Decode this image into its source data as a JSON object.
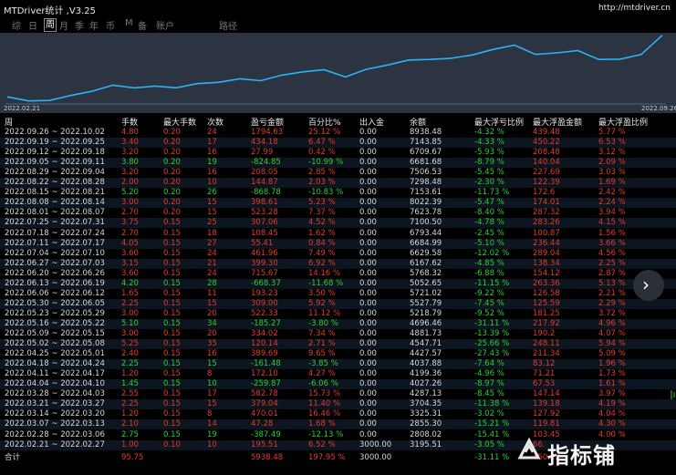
{
  "window": {
    "title": "MTDriver统计 ,V3.25",
    "url": "http://mtdriver.cn"
  },
  "tabs": [
    "综",
    "日",
    "周",
    "月",
    "季",
    "年",
    "币",
    "M",
    "备",
    "账户",
    "路径"
  ],
  "active_tab": "周",
  "chart": {
    "x_start": "2022.02.21",
    "x_end": "2022.09.26",
    "line_color": "#2bb3f5",
    "bg_color": "#2b3440"
  },
  "chart_data": {
    "type": "line",
    "x": [
      "2022.02.21",
      "2022.02.28",
      "2022.03.07",
      "2022.03.14",
      "2022.03.21",
      "2022.03.28",
      "2022.04.04",
      "2022.04.11",
      "2022.04.18",
      "2022.04.25",
      "2022.05.02",
      "2022.05.09",
      "2022.05.16",
      "2022.05.23",
      "2022.05.30",
      "2022.06.06",
      "2022.06.13",
      "2022.06.20",
      "2022.06.27",
      "2022.07.04",
      "2022.07.11",
      "2022.07.18",
      "2022.07.25",
      "2022.08.01",
      "2022.08.08",
      "2022.08.15",
      "2022.08.22",
      "2022.08.29",
      "2022.09.05",
      "2022.09.12",
      "2022.09.19",
      "2022.09.26"
    ],
    "series": [
      {
        "values": [
          3195.51,
          2808.02,
          2855.3,
          3325.31,
          3704.35,
          4287.13,
          4027.26,
          4199.36,
          4037.88,
          4427.57,
          4547.71,
          4881.73,
          4696.46,
          5218.79,
          5527.79,
          5721.02,
          5052.65,
          5768.32,
          6167.62,
          6629.58,
          6684.99,
          6793.44,
          7100.5,
          7623.78,
          8022.39,
          7153.61,
          7298.48,
          7506.53,
          6681.68,
          6709.67,
          7143.85,
          8938.48
        ]
      }
    ],
    "xlabel": "",
    "ylabel": "",
    "ylim": [
      2700,
      9000
    ]
  },
  "headers": [
    "周",
    "手数",
    "最大手数",
    "次数",
    "盈亏金额",
    "百分比%",
    "出入金",
    "余额",
    "最大浮亏比例",
    "最大浮盈金额",
    "最大浮盈比例"
  ],
  "rows": [
    {
      "week": "2022.09.26 ~ 2022.10.02",
      "lots": "4.80",
      "max_lots": "0.20",
      "count": "24",
      "pl": "1794.63",
      "pct": "25.12 %",
      "flow": "0.00",
      "balance": "8938.48",
      "max_dd_pct": "-4.32 %",
      "max_fp": "439.48",
      "max_fp_pct": "5.77 %",
      "sign": "pos"
    },
    {
      "week": "2022.09.19 ~ 2022.09.25",
      "lots": "3.40",
      "max_lots": "0.20",
      "count": "17",
      "pl": "434.18",
      "pct": "6.47 %",
      "flow": "0.00",
      "balance": "7143.85",
      "max_dd_pct": "-4.33 %",
      "max_fp": "450.22",
      "max_fp_pct": "6.53 %",
      "sign": "pos"
    },
    {
      "week": "2022.09.12 ~ 2022.09.18",
      "lots": "3.20",
      "max_lots": "0.20",
      "count": "16",
      "pl": "27.99",
      "pct": "0.42 %",
      "flow": "0.00",
      "balance": "6709.67",
      "max_dd_pct": "-5.93 %",
      "max_fp": "208.48",
      "max_fp_pct": "3.12 %",
      "sign": "pos"
    },
    {
      "week": "2022.09.05 ~ 2022.09.11",
      "lots": "3.80",
      "max_lots": "0.20",
      "count": "19",
      "pl": "-824.85",
      "pct": "-10.99 %",
      "flow": "0.00",
      "balance": "6681.68",
      "max_dd_pct": "-8.79 %",
      "max_fp": "140.04",
      "max_fp_pct": "2.09 %",
      "sign": "neg"
    },
    {
      "week": "2022.08.29 ~ 2022.09.04",
      "lots": "3.20",
      "max_lots": "0.20",
      "count": "16",
      "pl": "208.05",
      "pct": "2.85 %",
      "flow": "0.00",
      "balance": "7506.53",
      "max_dd_pct": "-5.45 %",
      "max_fp": "227.69",
      "max_fp_pct": "3.03 %",
      "sign": "pos"
    },
    {
      "week": "2022.08.22 ~ 2022.08.28",
      "lots": "2.00",
      "max_lots": "0.20",
      "count": "10",
      "pl": "144.87",
      "pct": "2.03 %",
      "flow": "0.00",
      "balance": "7298.48",
      "max_dd_pct": "-2.30 %",
      "max_fp": "122.39",
      "max_fp_pct": "1.69 %",
      "sign": "pos"
    },
    {
      "week": "2022.08.15 ~ 2022.08.21",
      "lots": "5.20",
      "max_lots": "0.20",
      "count": "26",
      "pl": "-868.78",
      "pct": "-10.83 %",
      "flow": "0.00",
      "balance": "7153.61",
      "max_dd_pct": "-11.73 %",
      "max_fp": "172.6",
      "max_fp_pct": "2.42 %",
      "sign": "neg"
    },
    {
      "week": "2022.08.08 ~ 2022.08.14",
      "lots": "3.00",
      "max_lots": "0.20",
      "count": "15",
      "pl": "398.61",
      "pct": "5.23 %",
      "flow": "0.00",
      "balance": "8022.39",
      "max_dd_pct": "-5.47 %",
      "max_fp": "174.01",
      "max_fp_pct": "2.24 %",
      "sign": "pos"
    },
    {
      "week": "2022.08.01 ~ 2022.08.07",
      "lots": "2.70",
      "max_lots": "0.20",
      "count": "15",
      "pl": "523.28",
      "pct": "7.37 %",
      "flow": "0.00",
      "balance": "7623.78",
      "max_dd_pct": "-8.40 %",
      "max_fp": "287.32",
      "max_fp_pct": "3.94 %",
      "sign": "pos"
    },
    {
      "week": "2022.07.25 ~ 2022.07.31",
      "lots": "3.75",
      "max_lots": "0.15",
      "count": "25",
      "pl": "307.06",
      "pct": "4.52 %",
      "flow": "0.00",
      "balance": "7100.50",
      "max_dd_pct": "-4.78 %",
      "max_fp": "283.26",
      "max_fp_pct": "4.15 %",
      "sign": "pos"
    },
    {
      "week": "2022.07.18 ~ 2022.07.24",
      "lots": "2.70",
      "max_lots": "0.15",
      "count": "18",
      "pl": "108.45",
      "pct": "1.62 %",
      "flow": "0.00",
      "balance": "6793.44",
      "max_dd_pct": "-2.45 %",
      "max_fp": "100.87",
      "max_fp_pct": "1.56 %",
      "sign": "pos"
    },
    {
      "week": "2022.07.11 ~ 2022.07.17",
      "lots": "4.05",
      "max_lots": "0.15",
      "count": "27",
      "pl": "55.41",
      "pct": "0.84 %",
      "flow": "0.00",
      "balance": "6684.99",
      "max_dd_pct": "-5.10 %",
      "max_fp": "236.44",
      "max_fp_pct": "3.66 %",
      "sign": "pos"
    },
    {
      "week": "2022.07.04 ~ 2022.07.10",
      "lots": "3.60",
      "max_lots": "0.15",
      "count": "24",
      "pl": "461.96",
      "pct": "7.49 %",
      "flow": "0.00",
      "balance": "6629.58",
      "max_dd_pct": "-12.02 %",
      "max_fp": "289.04",
      "max_fp_pct": "4.56 %",
      "sign": "pos"
    },
    {
      "week": "2022.06.27 ~ 2022.07.03",
      "lots": "3.15",
      "max_lots": "0.15",
      "count": "21",
      "pl": "399.30",
      "pct": "6.92 %",
      "flow": "0.00",
      "balance": "6167.62",
      "max_dd_pct": "-4.85 %",
      "max_fp": "138.34",
      "max_fp_pct": "2.25 %",
      "sign": "pos"
    },
    {
      "week": "2022.06.20 ~ 2022.06.26",
      "lots": "3.60",
      "max_lots": "0.15",
      "count": "24",
      "pl": "715.67",
      "pct": "14.16 %",
      "flow": "0.00",
      "balance": "5768.32",
      "max_dd_pct": "-6.88 %",
      "max_fp": "154.12",
      "max_fp_pct": "2.87 %",
      "sign": "pos"
    },
    {
      "week": "2022.06.13 ~ 2022.06.19",
      "lots": "4.20",
      "max_lots": "0.15",
      "count": "28",
      "pl": "-668.37",
      "pct": "-11.68 %",
      "flow": "0.00",
      "balance": "5052.65",
      "max_dd_pct": "-11.15 %",
      "max_fp": "263.36",
      "max_fp_pct": "5.13 %",
      "sign": "neg"
    },
    {
      "week": "2022.06.06 ~ 2022.06.12",
      "lots": "1.65",
      "max_lots": "0.15",
      "count": "11",
      "pl": "193.23",
      "pct": "3.50 %",
      "flow": "0.00",
      "balance": "5721.02",
      "max_dd_pct": "-9.22 %",
      "max_fp": "126.58",
      "max_fp_pct": "2.21 %",
      "sign": "pos"
    },
    {
      "week": "2022.05.30 ~ 2022.06.05",
      "lots": "2.25",
      "max_lots": "0.15",
      "count": "15",
      "pl": "309.00",
      "pct": "5.92 %",
      "flow": "0.00",
      "balance": "5527.79",
      "max_dd_pct": "-7.45 %",
      "max_fp": "125.59",
      "max_fp_pct": "2.29 %",
      "sign": "pos"
    },
    {
      "week": "2022.05.23 ~ 2022.05.29",
      "lots": "3.00",
      "max_lots": "0.15",
      "count": "20",
      "pl": "522.33",
      "pct": "11.12 %",
      "flow": "0.00",
      "balance": "5218.79",
      "max_dd_pct": "-9.52 %",
      "max_fp": "181.25",
      "max_fp_pct": "3.72 %",
      "sign": "pos"
    },
    {
      "week": "2022.05.16 ~ 2022.05.22",
      "lots": "5.10",
      "max_lots": "0.15",
      "count": "34",
      "pl": "-185.27",
      "pct": "-3.80 %",
      "flow": "0.00",
      "balance": "4696.46",
      "max_dd_pct": "-31.11 %",
      "max_fp": "217.92",
      "max_fp_pct": "4.96 %",
      "sign": "neg"
    },
    {
      "week": "2022.05.09 ~ 2022.05.15",
      "lots": "3.00",
      "max_lots": "0.15",
      "count": "20",
      "pl": "334.02",
      "pct": "7.34 %",
      "flow": "0.00",
      "balance": "4881.73",
      "max_dd_pct": "-13.39 %",
      "max_fp": "190.2",
      "max_fp_pct": "4.07 %",
      "sign": "pos"
    },
    {
      "week": "2022.05.02 ~ 2022.05.08",
      "lots": "5.25",
      "max_lots": "0.15",
      "count": "35",
      "pl": "120.14",
      "pct": "2.71 %",
      "flow": "0.00",
      "balance": "4547.71",
      "max_dd_pct": "-25.66 %",
      "max_fp": "248.11",
      "max_fp_pct": "5.94 %",
      "sign": "pos"
    },
    {
      "week": "2022.04.25 ~ 2022.05.01",
      "lots": "2.40",
      "max_lots": "0.15",
      "count": "16",
      "pl": "389.69",
      "pct": "9.65 %",
      "flow": "0.00",
      "balance": "4427.57",
      "max_dd_pct": "-27.43 %",
      "max_fp": "211.34",
      "max_fp_pct": "5.09 %",
      "sign": "pos"
    },
    {
      "week": "2022.04.18 ~ 2022.04.24",
      "lots": "2.25",
      "max_lots": "0.15",
      "count": "15",
      "pl": "-161.48",
      "pct": "-3.85 %",
      "flow": "0.00",
      "balance": "4037.88",
      "max_dd_pct": "-7.64 %",
      "max_fp": "83.12",
      "max_fp_pct": "1.96 %",
      "sign": "neg"
    },
    {
      "week": "2022.04.11 ~ 2022.04.17",
      "lots": "1.20",
      "max_lots": "0.15",
      "count": "8",
      "pl": "172.10",
      "pct": "4.27 %",
      "flow": "0.00",
      "balance": "4199.36",
      "max_dd_pct": "-4.96 %",
      "max_fp": "71.21",
      "max_fp_pct": "1.73 %",
      "sign": "pos"
    },
    {
      "week": "2022.04.04 ~ 2022.04.10",
      "lots": "1.45",
      "max_lots": "0.15",
      "count": "10",
      "pl": "-259.87",
      "pct": "-6.06 %",
      "flow": "0.00",
      "balance": "4027.26",
      "max_dd_pct": "-8.97 %",
      "max_fp": "67.53",
      "max_fp_pct": "1.61 %",
      "sign": "neg"
    },
    {
      "week": "2022.03.28 ~ 2022.04.03",
      "lots": "2.55",
      "max_lots": "0.15",
      "count": "17",
      "pl": "582.78",
      "pct": "15.73 %",
      "flow": "0.00",
      "balance": "4287.13",
      "max_dd_pct": "-8.45 %",
      "max_fp": "147.14",
      "max_fp_pct": "3.97 %",
      "sign": "pos"
    },
    {
      "week": "2022.03.21 ~ 2022.03.27",
      "lots": "2.25",
      "max_lots": "0.15",
      "count": "15",
      "pl": "379.04",
      "pct": "11.40 %",
      "flow": "0.00",
      "balance": "3704.35",
      "max_dd_pct": "-11.38 %",
      "max_fp": "139.18",
      "max_fp_pct": "4.19 %",
      "sign": "pos"
    },
    {
      "week": "2022.03.14 ~ 2022.03.20",
      "lots": "1.20",
      "max_lots": "0.15",
      "count": "8",
      "pl": "470.01",
      "pct": "16.46 %",
      "flow": "0.00",
      "balance": "3325.31",
      "max_dd_pct": "-3.02 %",
      "max_fp": "127.92",
      "max_fp_pct": "4.04 %",
      "sign": "pos"
    },
    {
      "week": "2022.03.07 ~ 2022.03.13",
      "lots": "2.10",
      "max_lots": "0.15",
      "count": "14",
      "pl": "47.28",
      "pct": "1.68 %",
      "flow": "0.00",
      "balance": "2855.30",
      "max_dd_pct": "-15.21 %",
      "max_fp": "119.81",
      "max_fp_pct": "4.30 %",
      "sign": "pos"
    },
    {
      "week": "2022.02.28 ~ 2022.03.06",
      "lots": "2.75",
      "max_lots": "0.15",
      "count": "19",
      "pl": "-387.49",
      "pct": "-12.13 %",
      "flow": "0.00",
      "balance": "2808.02",
      "max_dd_pct": "-15.41 %",
      "max_fp": "103.45",
      "max_fp_pct": "4.00 %",
      "sign": "neg"
    },
    {
      "week": "2022.02.21 ~ 2022.02.27",
      "lots": "1.00",
      "max_lots": "0.10",
      "count": "10",
      "pl": "195.51",
      "pct": "6.52 %",
      "flow": "3000.00",
      "balance": "3195.51",
      "max_dd_pct": "-3.05 %",
      "max_fp": "66.",
      "max_fp_pct": "",
      "sign": "pos"
    }
  ],
  "total": {
    "label": "合计",
    "lots": "95.75",
    "pl": "5938.48",
    "pct": "197.95 %",
    "flow": "3000.00",
    "max_dd_pct": "-31.11 %",
    "max_fp": "450.22"
  },
  "nav": {
    "next_icon": "chevron-right-icon",
    "glyph": "›"
  },
  "watermark": {
    "text": "指标铺"
  }
}
